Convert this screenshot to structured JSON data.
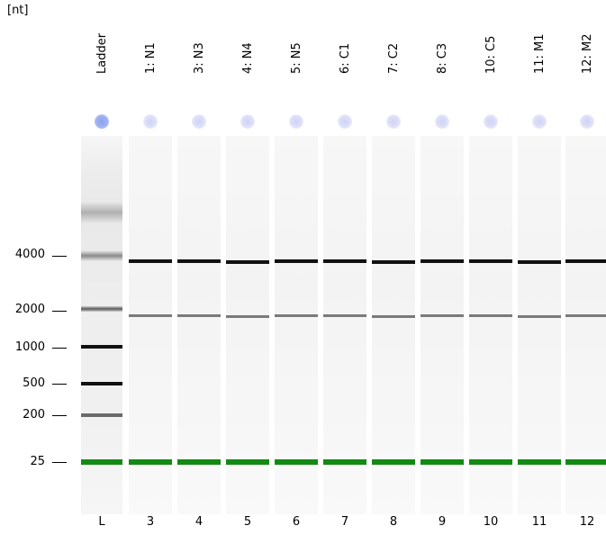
{
  "unit_label": "[nt]",
  "y_axis": {
    "labels": [
      "4000",
      "2000",
      "1000",
      "500",
      "200",
      "25"
    ]
  },
  "lanes": [
    {
      "title": "Ladder",
      "number": "L",
      "is_ladder": true
    },
    {
      "title": "1: N1",
      "number": "3",
      "is_ladder": false
    },
    {
      "title": "3: N3",
      "number": "4",
      "is_ladder": false
    },
    {
      "title": "4: N4",
      "number": "5",
      "is_ladder": false
    },
    {
      "title": "5: N5",
      "number": "6",
      "is_ladder": false
    },
    {
      "title": "6: C1",
      "number": "7",
      "is_ladder": false
    },
    {
      "title": "7: C2",
      "number": "8",
      "is_ladder": false
    },
    {
      "title": "8: C3",
      "number": "9",
      "is_ladder": false
    },
    {
      "title": "10: C5",
      "number": "10",
      "is_ladder": false
    },
    {
      "title": "11: M1",
      "number": "11",
      "is_ladder": false
    },
    {
      "title": "12: M2",
      "number": "12",
      "is_ladder": false
    }
  ],
  "colors": {
    "marker_band": "#138a13",
    "ladder_dot": "#8aa2ef",
    "sample_dot": "#cfd2f4",
    "band_dark": "#111111",
    "band_mid": "#555555"
  }
}
